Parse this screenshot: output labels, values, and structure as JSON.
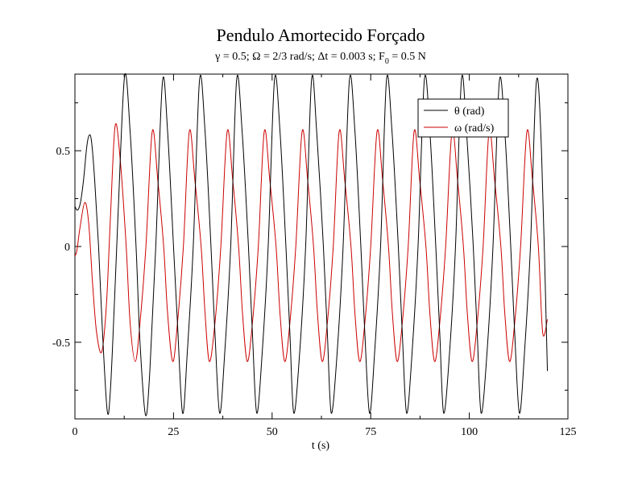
{
  "chart_data": {
    "type": "line",
    "title": "Pendulo Amortecido Forçado",
    "subtitle": {
      "p1": "γ = 0.5; Ω = 2/3 rad/s; Δt = 0.003 s; F",
      "sub": "0",
      "p2": " = 0.5 N"
    },
    "xlabel": "t (s)",
    "ylabel": "",
    "xlim": [
      0,
      125
    ],
    "ylim": [
      -0.9,
      0.9
    ],
    "x_ticks": [
      0,
      25,
      50,
      75,
      100,
      125
    ],
    "x_tick_labels": [
      "0",
      "25",
      "50",
      "75",
      "100",
      "125"
    ],
    "y_ticks": [
      -0.5,
      0,
      0.5
    ],
    "y_tick_labels": [
      "-0.5",
      "0",
      "0.5"
    ],
    "grid": false,
    "legend_position": "top-right",
    "series": [
      {
        "name": "θ (rad)",
        "color": "#000000",
        "x": [
          0,
          0.5,
          1,
          1.5,
          2.2,
          3,
          3.6,
          4.2,
          5,
          6,
          7,
          8.2,
          9,
          10,
          11,
          12.6,
          14,
          15.5,
          16.5,
          17.9,
          19,
          20.5,
          22.2,
          23.5,
          25,
          26,
          27.3,
          28.5,
          30,
          31.6,
          33,
          34.5,
          35.5,
          36.7,
          38,
          39.5,
          41,
          42.4,
          44,
          45,
          46.1,
          47.5,
          49,
          50.6,
          52,
          53.5,
          54.5,
          55.5,
          57,
          58.5,
          60,
          61.3,
          63,
          64,
          65,
          66.5,
          68,
          69.6,
          71,
          72.5,
          73.5,
          74.7,
          76,
          77.5,
          79,
          80.4,
          82,
          83,
          84.1,
          85.5,
          87,
          88.6,
          90,
          91.5,
          92.5,
          93.5,
          95,
          96.5,
          98,
          99.3,
          101,
          102,
          103,
          104.5,
          106,
          107.6,
          109,
          110.5,
          111.5,
          112.7,
          114,
          115.5,
          117,
          118.3,
          119.8
        ],
        "y": [
          0.21,
          0.19,
          0.2,
          0.24,
          0.35,
          0.52,
          0.58,
          0.55,
          0.35,
          0.0,
          -0.45,
          -0.86,
          -0.75,
          -0.3,
          0.2,
          0.89,
          0.6,
          0.0,
          -0.5,
          -0.88,
          -0.65,
          0.0,
          0.86,
          0.6,
          0.0,
          -0.4,
          -0.87,
          -0.55,
          0.0,
          0.87,
          0.6,
          0.0,
          -0.45,
          -0.87,
          -0.55,
          0.0,
          0.87,
          0.6,
          0.0,
          -0.45,
          -0.87,
          -0.55,
          0.0,
          0.87,
          0.6,
          0.0,
          -0.45,
          -0.87,
          -0.55,
          0.0,
          0.87,
          0.6,
          0.0,
          -0.45,
          -0.87,
          -0.55,
          0.0,
          0.87,
          0.6,
          0.0,
          -0.45,
          -0.87,
          -0.55,
          0.0,
          0.87,
          0.6,
          0.0,
          -0.45,
          -0.87,
          -0.55,
          0.0,
          0.87,
          0.6,
          0.0,
          -0.45,
          -0.87,
          -0.55,
          0.0,
          0.87,
          0.6,
          0.0,
          -0.45,
          -0.87,
          -0.55,
          0.0,
          0.86,
          0.6,
          0.0,
          -0.45,
          -0.87,
          -0.55,
          0.0,
          0.86,
          0.5,
          -0.65
        ]
      },
      {
        "name": "ω (rad/s)",
        "color": "#cc0000",
        "x": [
          0,
          0.5,
          1.3,
          2.5,
          3.5,
          4.5,
          5.5,
          6.8,
          8,
          9,
          10.2,
          11.5,
          13,
          14,
          15.3,
          16.5,
          18,
          19.6,
          21,
          22.5,
          23.5,
          24.8,
          26,
          27.5,
          29,
          30.4,
          32,
          33,
          34.1,
          35.5,
          37,
          38.6,
          40,
          41.5,
          42.5,
          43.7,
          45,
          46.5,
          48,
          49.4,
          51,
          52,
          53.2,
          54.5,
          56,
          57.6,
          59,
          60.5,
          61.5,
          62.7,
          64,
          65.5,
          67,
          68.4,
          70,
          71,
          72.2,
          73.5,
          75,
          76.6,
          78,
          79.5,
          80.5,
          81.7,
          83,
          84.5,
          86,
          87.4,
          89,
          90,
          91.2,
          92.5,
          94,
          95.6,
          97,
          98.5,
          99.5,
          100.7,
          102,
          103.5,
          105,
          106.4,
          108,
          109,
          110.2,
          111.5,
          113,
          114.6,
          116,
          117.5,
          118.6,
          119.8
        ],
        "y": [
          -0.05,
          -0.02,
          0.1,
          0.23,
          0.12,
          -0.2,
          -0.45,
          -0.55,
          -0.3,
          0.15,
          0.63,
          0.45,
          0.0,
          -0.4,
          -0.6,
          -0.4,
          0.0,
          0.6,
          0.35,
          0.0,
          -0.35,
          -0.6,
          -0.4,
          0.0,
          0.6,
          0.35,
          0.0,
          -0.35,
          -0.6,
          -0.4,
          0.0,
          0.6,
          0.35,
          0.0,
          -0.35,
          -0.6,
          -0.4,
          0.0,
          0.6,
          0.35,
          0.0,
          -0.35,
          -0.6,
          -0.4,
          0.0,
          0.6,
          0.35,
          0.0,
          -0.35,
          -0.6,
          -0.4,
          0.0,
          0.6,
          0.35,
          0.0,
          -0.35,
          -0.6,
          -0.4,
          0.0,
          0.6,
          0.35,
          0.0,
          -0.35,
          -0.6,
          -0.4,
          0.0,
          0.6,
          0.35,
          0.0,
          -0.35,
          -0.6,
          -0.4,
          0.0,
          0.6,
          0.35,
          0.0,
          -0.35,
          -0.6,
          -0.4,
          0.0,
          0.6,
          0.35,
          0.0,
          -0.35,
          -0.6,
          -0.4,
          0.0,
          0.6,
          0.35,
          0.0,
          -0.45,
          -0.38
        ]
      }
    ]
  }
}
